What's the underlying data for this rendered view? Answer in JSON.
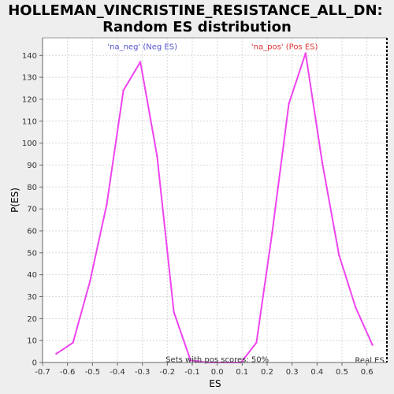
{
  "chart_data": {
    "type": "line",
    "title_line1": "HOLLEMAN_VINCRISTINE_RESISTANCE_ALL_DN:",
    "title_line2": "Random ES distribution",
    "xlabel": "ES",
    "ylabel": "P(ES)",
    "xlim": [
      -0.7,
      0.68
    ],
    "ylim": [
      0,
      148
    ],
    "xticks": [
      -0.7,
      -0.6,
      -0.5,
      -0.4,
      -0.3,
      -0.2,
      -0.1,
      0.0,
      0.1,
      0.2,
      0.3,
      0.4,
      0.5,
      0.6
    ],
    "xtick_labels": [
      "-0.7",
      "-0.6",
      "-0.5",
      "-0.4",
      "-0.3",
      "-0.2",
      "-0.1",
      "0.0",
      "0.1",
      "0.2",
      "0.3",
      "0.4",
      "0.5",
      "0.6"
    ],
    "yticks": [
      0,
      10,
      20,
      30,
      40,
      50,
      60,
      70,
      80,
      90,
      100,
      110,
      120,
      130,
      140
    ],
    "ytick_labels": [
      "0",
      "10",
      "20",
      "30",
      "40",
      "50",
      "60",
      "70",
      "80",
      "90",
      "100",
      "110",
      "120",
      "130",
      "140"
    ],
    "grid": true,
    "series": [
      {
        "color": "#ee44ee",
        "x": [
          -0.645,
          -0.578,
          -0.51,
          -0.443,
          -0.376,
          -0.308,
          -0.241,
          -0.174,
          -0.107,
          -0.04,
          0.028,
          0.095,
          0.157,
          0.22,
          0.287,
          0.354,
          0.421,
          0.488,
          0.555,
          0.622
        ],
        "y": [
          4,
          9,
          37,
          72,
          124,
          137,
          94,
          23,
          1,
          0,
          0,
          0,
          9,
          59,
          118,
          141,
          91,
          49,
          25,
          8
        ]
      }
    ],
    "annotations": [
      {
        "text": "'na_neg' (Neg ES)",
        "x": -0.3,
        "y": 144,
        "color": "#5555cc"
      },
      {
        "text": "'na_pos' (Pos ES)",
        "x": 0.27,
        "y": 144,
        "color": "#dd3333"
      },
      {
        "text": "Sets with pos scores: 50%",
        "x": 0.0,
        "y": 1.5,
        "color": "#333333"
      },
      {
        "text": "Real ES",
        "x": 0.67,
        "y": 1,
        "color": "#333333"
      }
    ],
    "real_es_marker": {
      "x": 0.68,
      "color": "#000000"
    }
  }
}
